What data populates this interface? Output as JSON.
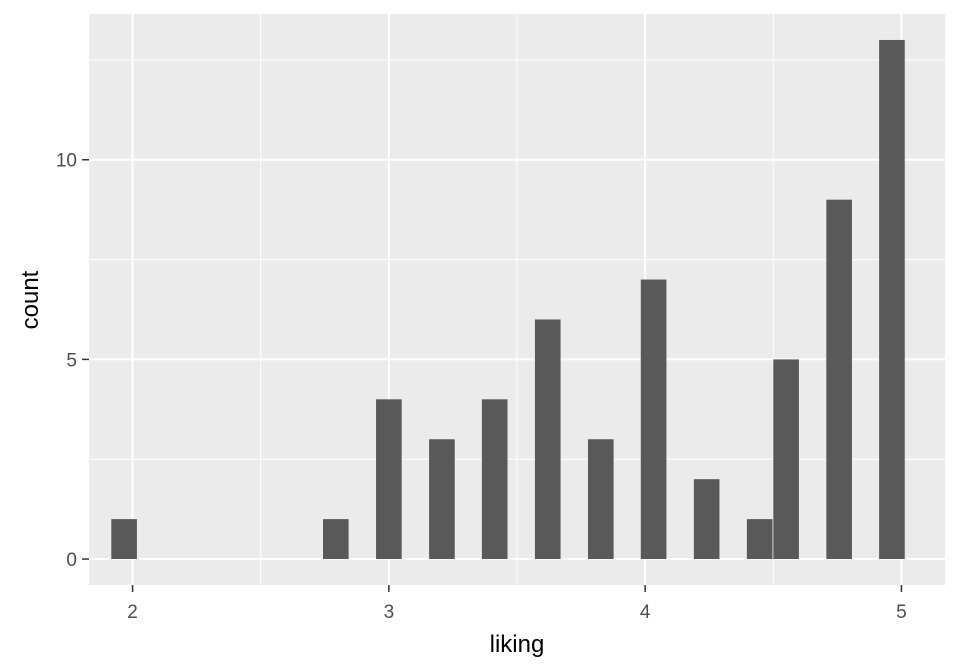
{
  "chart_data": {
    "type": "bar",
    "subtype": "histogram",
    "xlabel": "liking",
    "ylabel": "count",
    "bin_width": 0.1,
    "bars": [
      {
        "x": 1.967,
        "count": 1
      },
      {
        "x": 2.793,
        "count": 1
      },
      {
        "x": 3.0,
        "count": 4
      },
      {
        "x": 3.207,
        "count": 3
      },
      {
        "x": 3.413,
        "count": 4
      },
      {
        "x": 3.62,
        "count": 6
      },
      {
        "x": 3.827,
        "count": 3
      },
      {
        "x": 4.033,
        "count": 7
      },
      {
        "x": 4.24,
        "count": 2
      },
      {
        "x": 4.447,
        "count": 1
      },
      {
        "x": 4.55,
        "count": 5
      },
      {
        "x": 4.757,
        "count": 9
      },
      {
        "x": 4.963,
        "count": 13
      }
    ],
    "xlim": [
      1.83,
      5.17
    ],
    "ylim": [
      -0.65,
      13.65
    ],
    "x_ticks": [
      2,
      3,
      4,
      5
    ],
    "x_minor": [
      2.5,
      3.5,
      4.5
    ],
    "y_ticks": [
      0,
      5,
      10
    ],
    "y_minor": [
      2.5,
      7.5,
      12.5
    ],
    "grid": true,
    "colors": {
      "bar": "#595959",
      "panel": "#ebebeb",
      "grid": "#ffffff",
      "tick_text": "#4d4d4d",
      "axis_title": "#000000"
    }
  }
}
